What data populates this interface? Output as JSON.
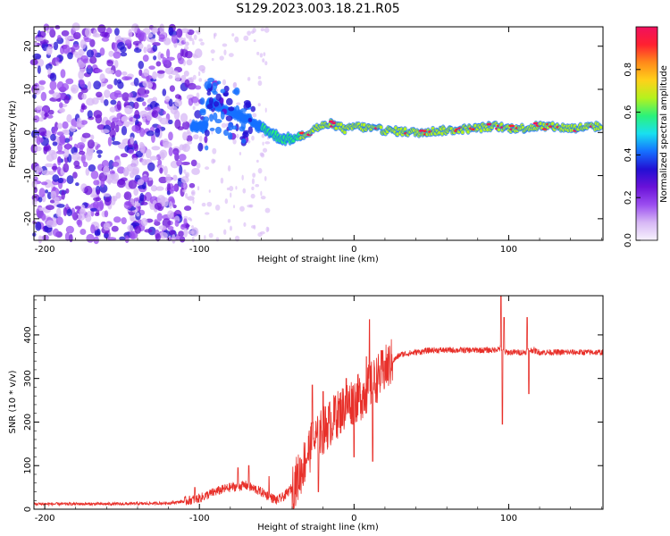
{
  "title": "S129.2023.003.18.21.R05",
  "colors": {
    "snr_line": "#e8302a",
    "axis": "#000000",
    "colormap": [
      "#f7f2fd",
      "#d7b8f5",
      "#9b4df0",
      "#6a11d8",
      "#2210d4",
      "#1570ff",
      "#19e0f0",
      "#2bf27a",
      "#b5f21e",
      "#ffd11a",
      "#ff8a1a",
      "#ff2030",
      "#f0105e"
    ]
  },
  "chart_data": [
    {
      "type": "heatmap",
      "xlabel": "Height of straight line (km)",
      "ylabel": "Frequency (Hz)",
      "xlim": [
        -207,
        161
      ],
      "ylim": [
        -25,
        24.5
      ],
      "x_ticks": [
        "-200",
        "-100",
        "0",
        "100"
      ],
      "y_ticks": [
        "-20",
        "-10",
        "0",
        "10",
        "20"
      ],
      "grid": false,
      "colorbar": {
        "label": "Normalized spectral amplitude",
        "range": [
          0,
          1
        ],
        "ticks": [
          "0.0",
          "0.2",
          "0.4",
          "0.6",
          "0.8"
        ]
      },
      "ridge": {
        "description_points_x": [
          -95,
          -85,
          -75,
          -65,
          -58,
          -52,
          -46,
          -40,
          -35,
          -30,
          -25,
          -20,
          -15,
          -10,
          -5,
          0,
          10,
          20,
          40,
          60,
          80,
          90,
          100,
          110,
          120,
          140,
          161
        ],
        "description_points_y": [
          7,
          6,
          4,
          2,
          1,
          -0.5,
          -1.5,
          -1.5,
          -1,
          0,
          1,
          1.5,
          2,
          1.5,
          0.5,
          1.5,
          1,
          0.5,
          0,
          0.5,
          1,
          1.5,
          1,
          1,
          1.5,
          1,
          1.5
        ]
      }
    },
    {
      "type": "line",
      "xlabel": "Height of straight line (km)",
      "ylabel": "SNR (10 * v/v)",
      "xlim": [
        -207,
        161
      ],
      "ylim": [
        0,
        490
      ],
      "x_ticks": [
        "-200",
        "-100",
        "0",
        "100"
      ],
      "y_ticks": [
        "0",
        "100",
        "200",
        "300",
        "400"
      ],
      "grid": false,
      "series": [
        {
          "x": [
            -207,
            -150,
            -120,
            -110,
            -100,
            -90,
            -80,
            -70,
            -60,
            -50,
            -45,
            -40,
            -35,
            -30,
            -25,
            -20,
            -15,
            -10,
            -5,
            0,
            5,
            10,
            15,
            20,
            25,
            30,
            40,
            50,
            60,
            70,
            80,
            90,
            95,
            97,
            100,
            105,
            110,
            113,
            116,
            120,
            130,
            140,
            150,
            161
          ],
          "y": [
            12,
            12,
            14,
            18,
            25,
            40,
            50,
            55,
            40,
            20,
            30,
            50,
            80,
            130,
            160,
            180,
            200,
            220,
            240,
            250,
            260,
            280,
            300,
            320,
            340,
            355,
            360,
            365,
            365,
            365,
            365,
            365,
            370,
            360,
            360,
            360,
            360,
            365,
            365,
            360,
            360,
            360,
            360,
            360
          ],
          "spikes": [
            {
              "x": -103,
              "y": 50
            },
            {
              "x": -75,
              "y": 95
            },
            {
              "x": -68,
              "y": 100
            },
            {
              "x": -55,
              "y": 75
            },
            {
              "x": -27,
              "y": 285
            },
            {
              "x": -23,
              "y": 40
            },
            {
              "x": -20,
              "y": 270
            },
            {
              "x": -12,
              "y": 260
            },
            {
              "x": -5,
              "y": 300
            },
            {
              "x": 0,
              "y": 120
            },
            {
              "x": 8,
              "y": 350
            },
            {
              "x": 10,
              "y": 435
            },
            {
              "x": 12,
              "y": 110
            },
            {
              "x": 20,
              "y": 340
            },
            {
              "x": 95,
              "y": 490
            },
            {
              "x": 96,
              "y": 195
            },
            {
              "x": 97,
              "y": 440
            },
            {
              "x": 112,
              "y": 440
            },
            {
              "x": 113,
              "y": 265
            }
          ]
        }
      ]
    }
  ]
}
